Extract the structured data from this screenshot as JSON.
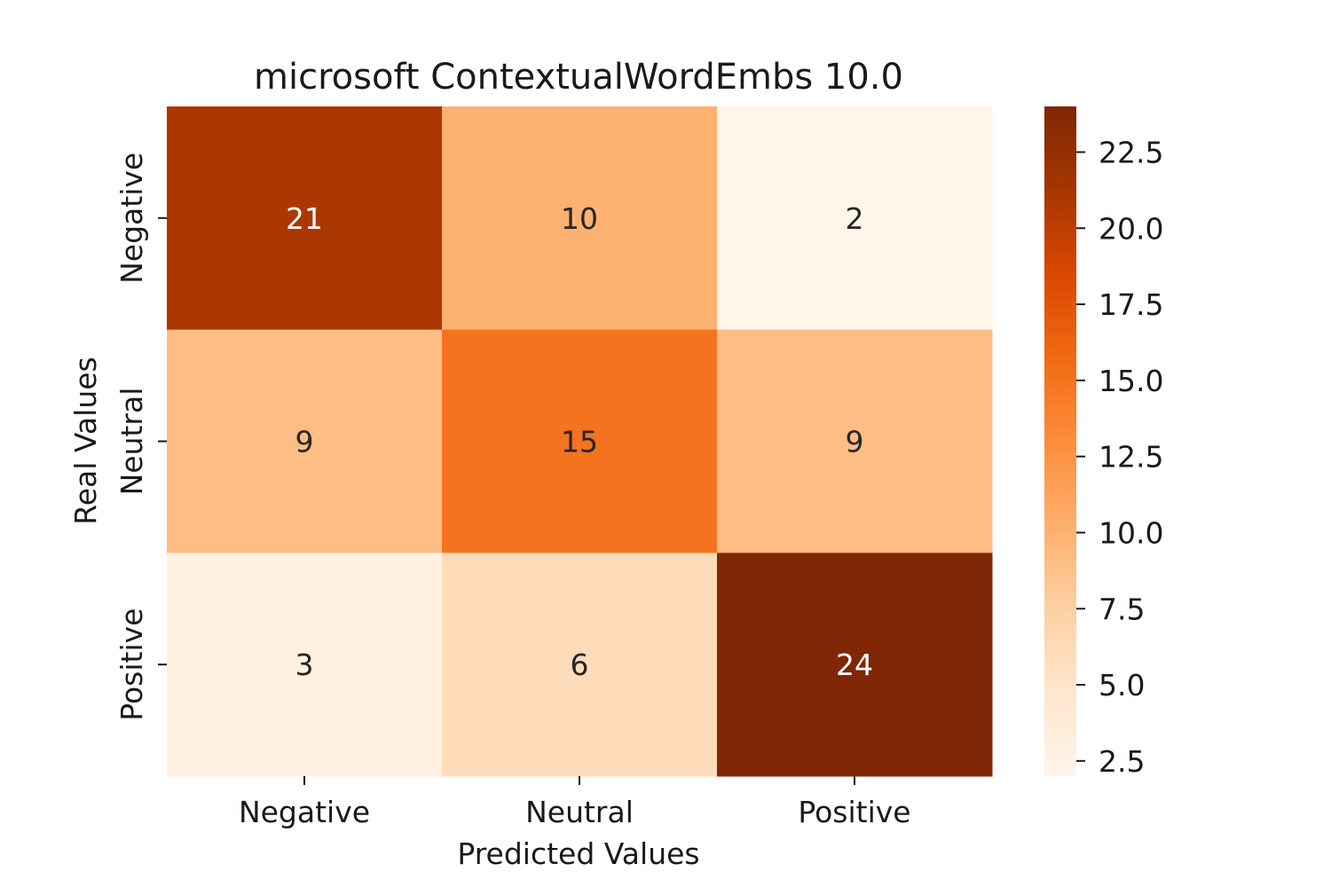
{
  "chart_data": {
    "type": "heatmap",
    "title": "microsoft ContextualWordEmbs 10.0",
    "xlabel": "Predicted Values",
    "ylabel": "Real Values",
    "x_categories": [
      "Negative",
      "Neutral",
      "Positive"
    ],
    "y_categories": [
      "Negative",
      "Neutral",
      "Positive"
    ],
    "values": [
      [
        21,
        10,
        2
      ],
      [
        9,
        15,
        9
      ],
      [
        3,
        6,
        24
      ]
    ],
    "colormap": "Oranges",
    "color_range": [
      2,
      24
    ],
    "colorbar_ticks": [
      "2.5",
      "5.0",
      "7.5",
      "10.0",
      "12.5",
      "15.0",
      "17.5",
      "20.0",
      "22.5"
    ],
    "colorbar_tick_values": [
      2.5,
      5.0,
      7.5,
      10.0,
      12.5,
      15.0,
      17.5,
      20.0,
      22.5
    ],
    "grid": false
  }
}
